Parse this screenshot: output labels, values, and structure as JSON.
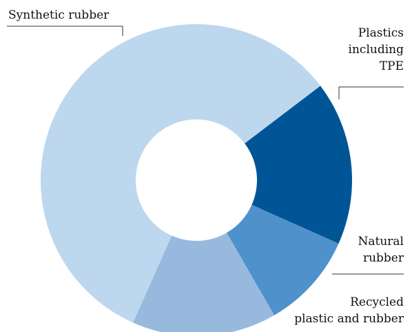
{
  "chart_data": {
    "type": "pie",
    "donut": true,
    "title": "",
    "slices": [
      {
        "label": "Synthetic rubber",
        "lines": [
          "Synthetic rubber"
        ],
        "value": 58,
        "color": "#bdd7ef"
      },
      {
        "label": "Plastics including TPE",
        "lines": [
          "Plastics",
          "including",
          "TPE"
        ],
        "value": 17,
        "color": "#005596"
      },
      {
        "label": "Natural rubber",
        "lines": [
          "Natural",
          "rubber"
        ],
        "value": 10,
        "color": "#4f91cb"
      },
      {
        "label": "Recycled plastic and rubber",
        "lines": [
          "Recycled",
          "plastic and rubber"
        ],
        "value": 15,
        "color": "#98b9de"
      }
    ],
    "legend": "none"
  }
}
